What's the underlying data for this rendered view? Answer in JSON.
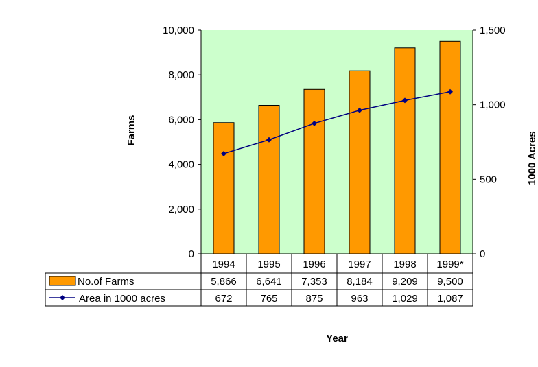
{
  "chart_data": {
    "type": "bar",
    "categories": [
      "1994",
      "1995",
      "1996",
      "1997",
      "1998",
      "1999*"
    ],
    "series": [
      {
        "name": "No.of Farms",
        "type": "bar",
        "axis": "left",
        "values": [
          5866,
          6641,
          7353,
          8184,
          9209,
          9500
        ],
        "value_labels": [
          "5,866",
          "6,641",
          "7,353",
          "8,184",
          "9,209",
          "9,500"
        ],
        "color": "#FF9900"
      },
      {
        "name": "Area in 1000 acres",
        "type": "line",
        "axis": "right",
        "values": [
          672,
          765,
          875,
          963,
          1029,
          1087
        ],
        "value_labels": [
          "672",
          "765",
          "875",
          "963",
          "1,029",
          "1,087"
        ],
        "color": "#000080"
      }
    ],
    "xlabel": "Year",
    "ylabel": "Farms",
    "y2label": "1000 Acres",
    "ylim": [
      0,
      10000
    ],
    "y2lim": [
      0,
      1500
    ],
    "yticks": [
      "0",
      "2,000",
      "4,000",
      "6,000",
      "8,000",
      "10,000"
    ],
    "y2ticks": [
      "0",
      "500",
      "1,000",
      "1,500"
    ],
    "plot_background": "#CCFFCC",
    "data_table": true,
    "grid": false
  }
}
